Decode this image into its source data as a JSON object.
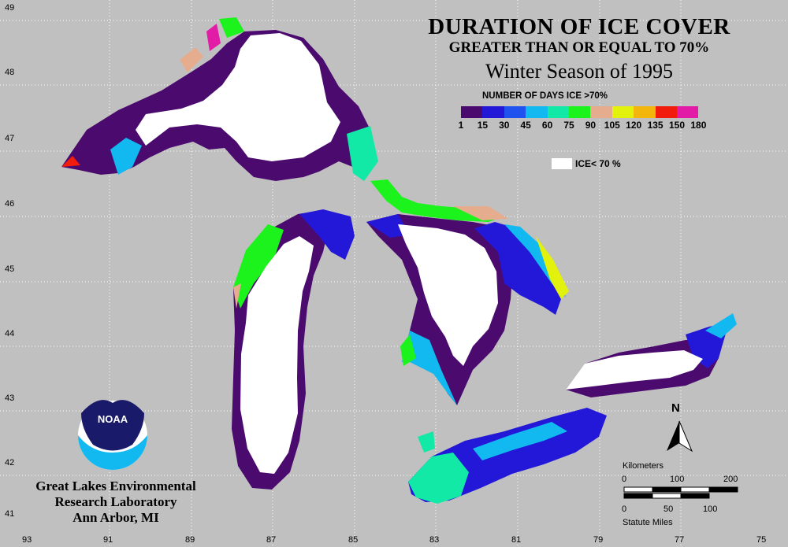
{
  "title": {
    "line1": "DURATION OF ICE COVER",
    "line2": "GREATER THAN OR EQUAL TO 70%",
    "line3": "Winter Season of 1995"
  },
  "legend": {
    "title": "NUMBER OF DAYS ICE >70%",
    "colors": [
      "#4b0a6e",
      "#2418d8",
      "#1f52ee",
      "#12b9f0",
      "#12e9a6",
      "#1cf21c",
      "#e5ad8e",
      "#e2f20c",
      "#f2b60c",
      "#f21c0c",
      "#e21ca6"
    ],
    "ticks": [
      "1",
      "15",
      "30",
      "45",
      "60",
      "75",
      "90",
      "105",
      "120",
      "135",
      "150",
      "180"
    ],
    "ice_label": "ICE< 70 %",
    "ice_color": "#ffffff"
  },
  "axes": {
    "latitudes": [
      "49",
      "48",
      "47",
      "46",
      "45",
      "44",
      "43",
      "42",
      "41"
    ],
    "longitudes": [
      "93",
      "91",
      "89",
      "87",
      "85",
      "83",
      "81",
      "79",
      "77",
      "75"
    ]
  },
  "scale": {
    "km_label": "Kilometers",
    "km_ticks": [
      "0",
      "100",
      "200"
    ],
    "mi_ticks": [
      "0",
      "50",
      "100"
    ],
    "mi_label": "Statute Miles"
  },
  "north_label": "N",
  "logo": {
    "text": "NOAA"
  },
  "lab": {
    "line1": "Great Lakes Environmental",
    "line2": "Research Laboratory",
    "line3": "Ann Arbor, MI"
  },
  "colors": {
    "background": "#c0c0c0",
    "grid": "#ffffff",
    "ice": "#ffffff",
    "purple": "#4b0a6e",
    "blue": "#2418d8"
  }
}
